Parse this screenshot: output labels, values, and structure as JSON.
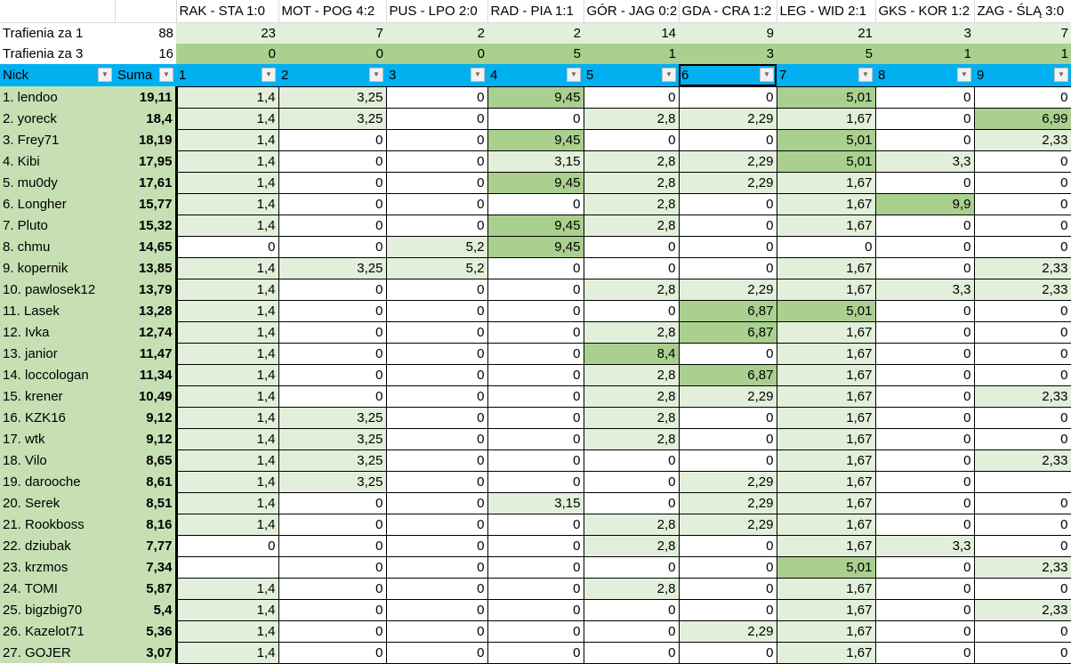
{
  "matches": [
    "RAK - STA 1:0",
    "MOT - POG 4:2",
    "PUS - LPO 2:0",
    "RAD - PIA 1:1",
    "GÓR - JAG 0:2",
    "GDA - CRA 1:2",
    "LEG - WID 2:1",
    "GKS - KOR 1:2",
    "ZAG - ŚLĄ 3:0"
  ],
  "hits1": {
    "label": "Trafienia za 1",
    "total": "88",
    "values": [
      "23",
      "7",
      "2",
      "2",
      "14",
      "9",
      "21",
      "3",
      "7"
    ]
  },
  "hits3": {
    "label": "Trafienia za 3",
    "total": "16",
    "values": [
      "0",
      "0",
      "0",
      "5",
      "1",
      "3",
      "5",
      "1",
      "1"
    ]
  },
  "headers": {
    "nick": "Nick",
    "suma": "Suma",
    "cols": [
      "1",
      "2",
      "3",
      "4",
      "5",
      "6",
      "7",
      "8",
      "9"
    ]
  },
  "filter_icon": "dropdown-arrow-icon",
  "selected_header": "6",
  "colors": {
    "header": "#00b0f0",
    "hit1": "#e2efda",
    "hit3": "#a9d08e",
    "name_col": "#c6e0b4"
  },
  "rows": [
    {
      "nick": "1.  lendoo",
      "suma": "19,11",
      "v": [
        "1,4",
        "3,25",
        "0",
        "9,45",
        "0",
        "0",
        "5,01",
        "0",
        "0"
      ]
    },
    {
      "nick": "2.  yoreck",
      "suma": "18,4",
      "v": [
        "1,4",
        "3,25",
        "0",
        "0",
        "2,8",
        "2,29",
        "1,67",
        "0",
        "6,99"
      ]
    },
    {
      "nick": "3.  Frey71",
      "suma": "18,19",
      "v": [
        "1,4",
        "0",
        "0",
        "9,45",
        "0",
        "0",
        "5,01",
        "0",
        "2,33"
      ]
    },
    {
      "nick": "4.  Kibi",
      "suma": "17,95",
      "v": [
        "1,4",
        "0",
        "0",
        "3,15",
        "2,8",
        "2,29",
        "5,01",
        "3,3",
        "0"
      ]
    },
    {
      "nick": "5.  mu0dy",
      "suma": "17,61",
      "v": [
        "1,4",
        "0",
        "0",
        "9,45",
        "2,8",
        "2,29",
        "1,67",
        "0",
        "0"
      ]
    },
    {
      "nick": "6.  Longher",
      "suma": "15,77",
      "v": [
        "1,4",
        "0",
        "0",
        "0",
        "2,8",
        "0",
        "1,67",
        "9,9",
        "0"
      ]
    },
    {
      "nick": "7.  Pluto",
      "suma": "15,32",
      "v": [
        "1,4",
        "0",
        "0",
        "9,45",
        "2,8",
        "0",
        "1,67",
        "0",
        "0"
      ]
    },
    {
      "nick": "8.  chmu",
      "suma": "14,65",
      "v": [
        "0",
        "0",
        "5,2",
        "9,45",
        "0",
        "0",
        "0",
        "0",
        "0"
      ]
    },
    {
      "nick": "9.  kopernik",
      "suma": "13,85",
      "v": [
        "1,4",
        "3,25",
        "5,2",
        "0",
        "0",
        "0",
        "1,67",
        "0",
        "2,33"
      ]
    },
    {
      "nick": "10.  pawlosek12",
      "suma": "13,79",
      "v": [
        "1,4",
        "0",
        "0",
        "0",
        "2,8",
        "2,29",
        "1,67",
        "3,3",
        "2,33"
      ]
    },
    {
      "nick": "11.  Lasek",
      "suma": "13,28",
      "v": [
        "1,4",
        "0",
        "0",
        "0",
        "0",
        "6,87",
        "5,01",
        "0",
        "0"
      ]
    },
    {
      "nick": "12.  Ivka",
      "suma": "12,74",
      "v": [
        "1,4",
        "0",
        "0",
        "0",
        "2,8",
        "6,87",
        "1,67",
        "0",
        "0"
      ]
    },
    {
      "nick": "13.  janior",
      "suma": "11,47",
      "v": [
        "1,4",
        "0",
        "0",
        "0",
        "8,4",
        "0",
        "1,67",
        "0",
        "0"
      ]
    },
    {
      "nick": "14.  loccologan",
      "suma": "11,34",
      "v": [
        "1,4",
        "0",
        "0",
        "0",
        "2,8",
        "6,87",
        "1,67",
        "0",
        "0"
      ]
    },
    {
      "nick": "15.  krener",
      "suma": "10,49",
      "v": [
        "1,4",
        "0",
        "0",
        "0",
        "2,8",
        "2,29",
        "1,67",
        "0",
        "2,33"
      ]
    },
    {
      "nick": "16.  KZK16",
      "suma": "9,12",
      "v": [
        "1,4",
        "3,25",
        "0",
        "0",
        "2,8",
        "0",
        "1,67",
        "0",
        "0"
      ]
    },
    {
      "nick": "17.  wtk",
      "suma": "9,12",
      "v": [
        "1,4",
        "3,25",
        "0",
        "0",
        "2,8",
        "0",
        "1,67",
        "0",
        "0"
      ]
    },
    {
      "nick": "18.  Vilo",
      "suma": "8,65",
      "v": [
        "1,4",
        "3,25",
        "0",
        "0",
        "0",
        "0",
        "1,67",
        "0",
        "2,33"
      ]
    },
    {
      "nick": "19.  darooche",
      "suma": "8,61",
      "v": [
        "1,4",
        "3,25",
        "0",
        "0",
        "0",
        "2,29",
        "1,67",
        "0",
        ""
      ]
    },
    {
      "nick": "20.  Serek",
      "suma": "8,51",
      "v": [
        "1,4",
        "0",
        "0",
        "3,15",
        "0",
        "2,29",
        "1,67",
        "0",
        "0"
      ]
    },
    {
      "nick": "21.  Rookboss",
      "suma": "8,16",
      "v": [
        "1,4",
        "0",
        "0",
        "0",
        "2,8",
        "2,29",
        "1,67",
        "0",
        "0"
      ]
    },
    {
      "nick": "22.  dziubak",
      "suma": "7,77",
      "v": [
        "0",
        "0",
        "0",
        "0",
        "2,8",
        "0",
        "1,67",
        "3,3",
        "0"
      ]
    },
    {
      "nick": "23.  krzmos",
      "suma": "7,34",
      "v": [
        "",
        "0",
        "0",
        "0",
        "0",
        "0",
        "5,01",
        "0",
        "2,33"
      ]
    },
    {
      "nick": "24.  TOMI",
      "suma": "5,87",
      "v": [
        "1,4",
        "0",
        "0",
        "0",
        "2,8",
        "0",
        "1,67",
        "0",
        "0"
      ]
    },
    {
      "nick": "25.  bigzbig70",
      "suma": "5,4",
      "v": [
        "1,4",
        "0",
        "0",
        "0",
        "0",
        "0",
        "1,67",
        "0",
        "2,33"
      ]
    },
    {
      "nick": "26.  Kazelot71",
      "suma": "5,36",
      "v": [
        "1,4",
        "0",
        "0",
        "0",
        "0",
        "2,29",
        "1,67",
        "0",
        "0"
      ]
    },
    {
      "nick": "27.  GOJER",
      "suma": "3,07",
      "v": [
        "1,4",
        "0",
        "0",
        "0",
        "0",
        "0",
        "1,67",
        "0",
        "0"
      ]
    }
  ]
}
